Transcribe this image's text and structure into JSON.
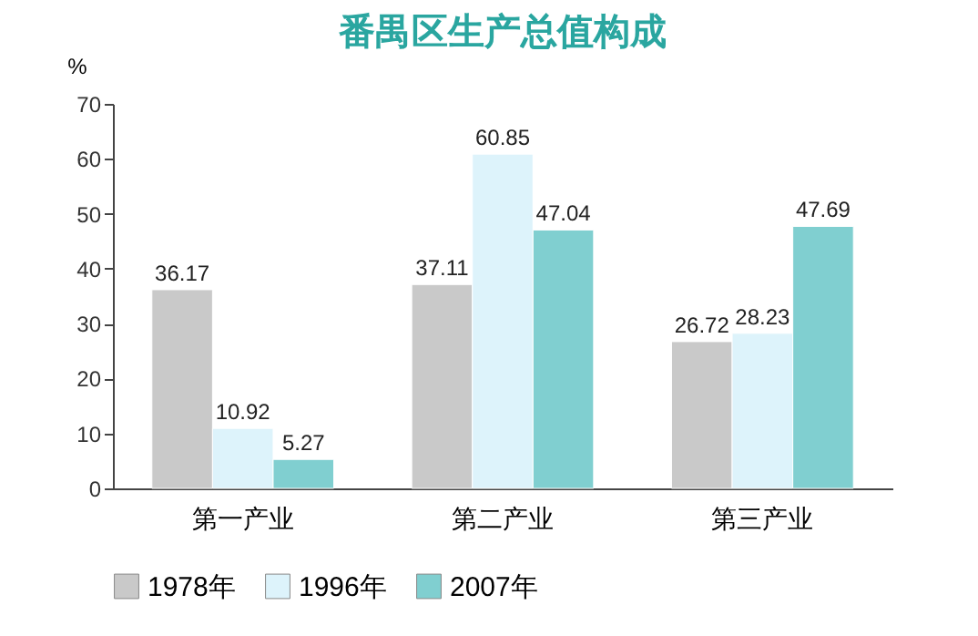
{
  "chart_data": {
    "type": "bar",
    "title": "番禺区生产总值构成",
    "ylabel": "%",
    "categories": [
      "第一产业",
      "第二产业",
      "第三产业"
    ],
    "series": [
      {
        "name": "1978年",
        "color": "#c9c9c9",
        "values": [
          36.17,
          37.11,
          26.72
        ]
      },
      {
        "name": "1996年",
        "color": "#ddf3fb",
        "values": [
          10.92,
          60.85,
          28.23
        ]
      },
      {
        "name": "2007年",
        "color": "#80cfd0",
        "values": [
          5.27,
          47.04,
          47.69
        ]
      }
    ],
    "ylim": [
      0,
      70
    ],
    "yticks": [
      0,
      10,
      20,
      30,
      40,
      50,
      60,
      70
    ],
    "grid": false,
    "legend": "bottom",
    "data_labels": true
  }
}
